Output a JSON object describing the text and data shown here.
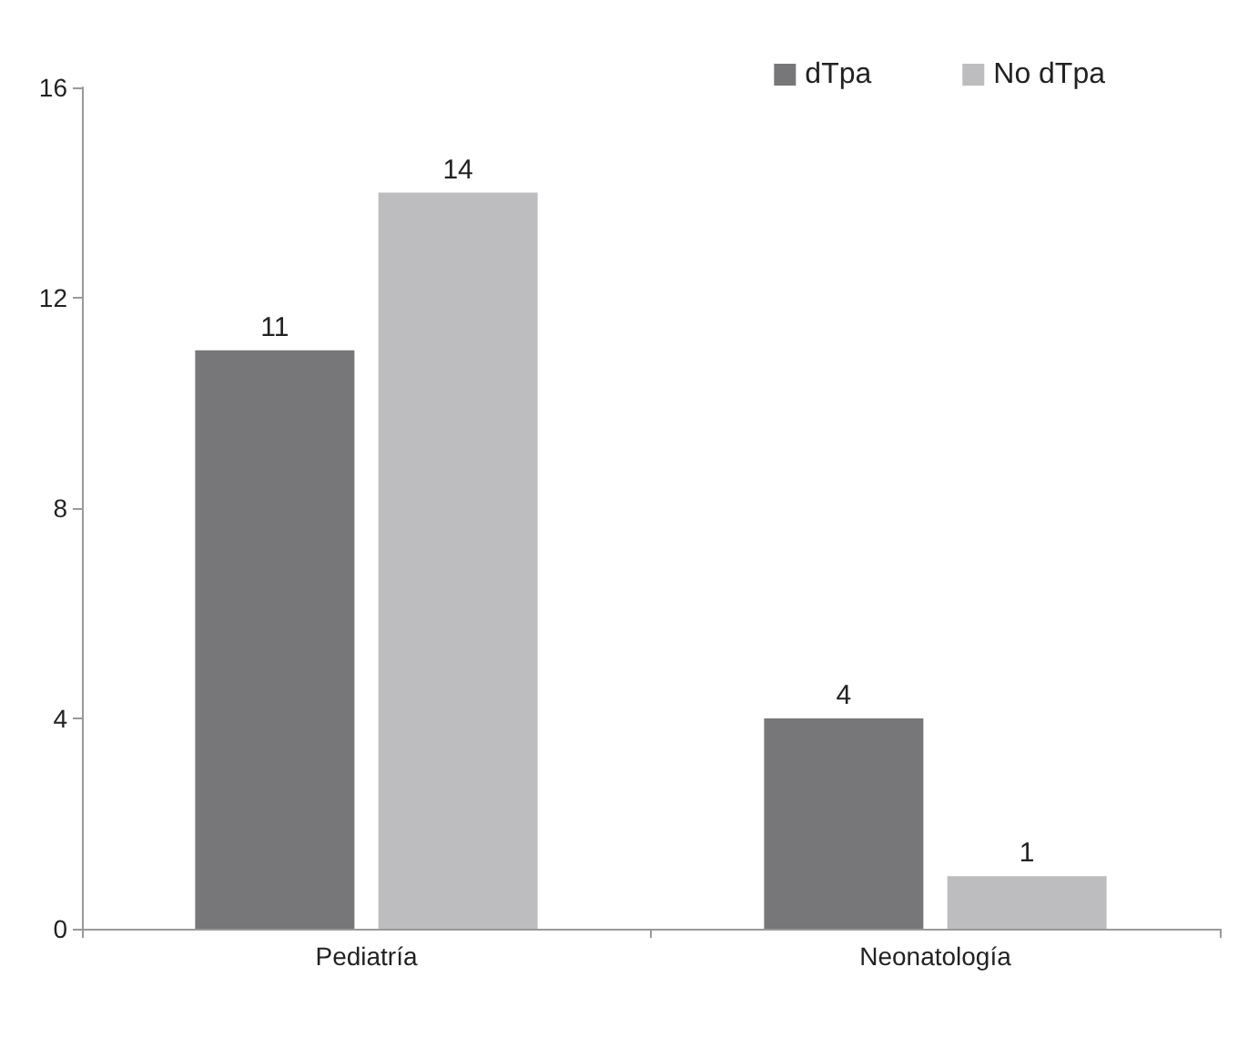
{
  "chart_data": {
    "type": "bar",
    "categories": [
      "Pediatría",
      "Neonatología"
    ],
    "series": [
      {
        "name": "dTpa",
        "color": "#77777a",
        "values": [
          11,
          4
        ]
      },
      {
        "name": "No dTpa",
        "color": "#bdbdbf",
        "values": [
          14,
          1
        ]
      }
    ],
    "ylim": [
      0,
      16
    ],
    "yticks": [
      0,
      4,
      8,
      12,
      16
    ],
    "grid": false,
    "legend": "top right",
    "data_labels": true
  }
}
